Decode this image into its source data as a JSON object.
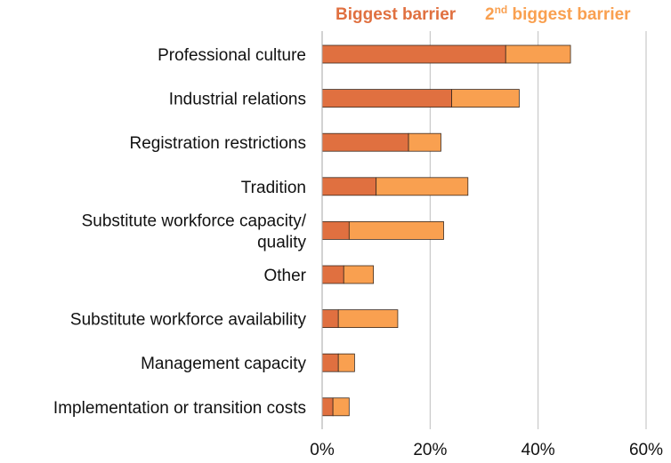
{
  "chart_data": {
    "type": "bar",
    "orientation": "horizontal",
    "stacked": true,
    "categories": [
      [
        "Professional culture"
      ],
      [
        "Industrial relations"
      ],
      [
        "Registration restrictions"
      ],
      [
        "Tradition"
      ],
      [
        "Substitute workforce capacity/",
        "quality"
      ],
      [
        "Other"
      ],
      [
        "Substitute workforce availability"
      ],
      [
        "Management capacity"
      ],
      [
        "Implementation or transition costs"
      ]
    ],
    "series": [
      {
        "name": "Biggest barrier",
        "color": "#E07040",
        "values": [
          34,
          24,
          16,
          10,
          5,
          4,
          3,
          3,
          2
        ]
      },
      {
        "name": "biggest barrier",
        "name_prefix": "2",
        "name_superscript": "nd",
        "color": "#F9A050",
        "values": [
          12,
          12.5,
          6,
          17,
          17.5,
          5.5,
          11,
          3,
          3
        ]
      }
    ],
    "xlim": [
      0,
      60
    ],
    "xticks": [
      0,
      20,
      40,
      60
    ],
    "xtick_labels": [
      "0%",
      "20%",
      "40%",
      "60%"
    ],
    "grid": "vertical",
    "legend_position": "top"
  }
}
